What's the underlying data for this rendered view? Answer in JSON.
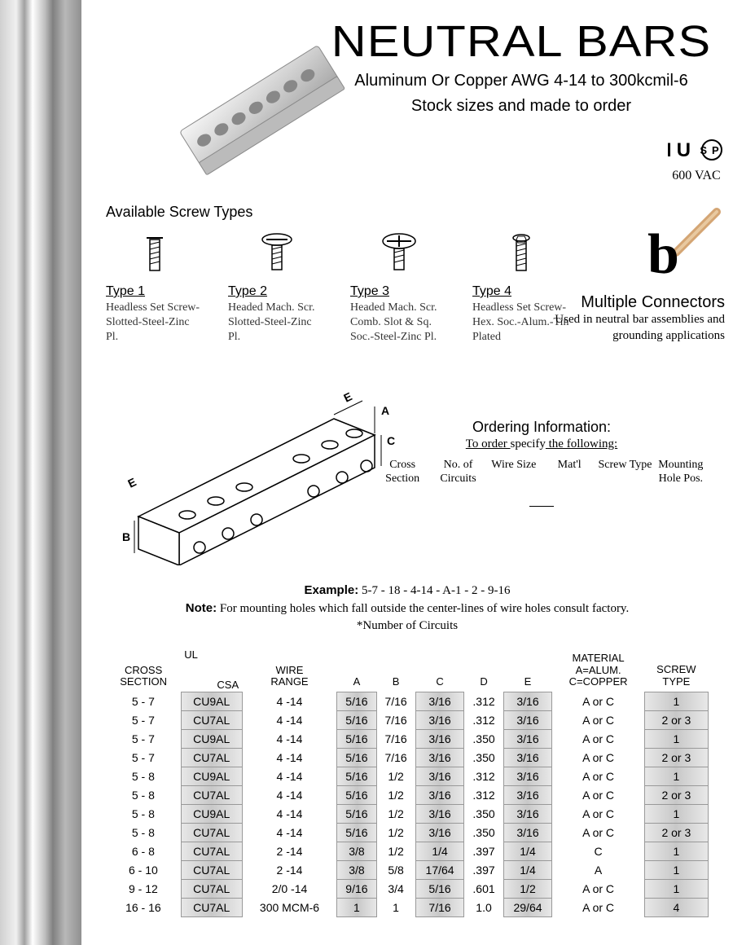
{
  "title": "NEUTRAL BARS",
  "subtitle1": "Aluminum Or Copper AWG 4-14 to 300kcmil-6",
  "subtitle2": "Stock sizes and made to order",
  "cert_voltage": "600 VAC",
  "screw_section_label": "Available Screw Types",
  "screws": [
    {
      "title": "Type 1",
      "desc": "Headless Set Screw-Slotted-Steel-Zinc Pl."
    },
    {
      "title": "Type 2",
      "desc": "Headed Mach. Scr. Slotted-Steel-Zinc Pl."
    },
    {
      "title": "Type 3",
      "desc": "Headed Mach. Scr. Comb. Slot & Sq. Soc.-Steel-Zinc Pl."
    },
    {
      "title": "Type 4",
      "desc": "Headless Set Screw-Hex. Soc.-Alum.-Tin Plated"
    }
  ],
  "mc_title": "Multiple Connectors",
  "mc_desc": "Used in neutral bar assemblies and grounding applications",
  "order_title": "Ordering Information:",
  "order_sub_pre": "To order ",
  "order_sub_mid": "specify",
  "order_sub_post": " the following:",
  "order_fields": [
    "Cross Section",
    "No. of Circuits",
    "Wire Size",
    "Mat'l",
    "Screw Type",
    "Mounting Hole Pos."
  ],
  "example_label": "Example:",
  "example_text": " 5-7 - 18 - 4-14 - A-1 - 2 - 9-16",
  "note_label": "Note:",
  "note_text": " For mounting holes which fall outside the center-lines of wire holes consult factory.",
  "note_foot": "*Number of Circuits",
  "table": {
    "headers": [
      "CROSS SECTION",
      "UL\nCSA",
      "WIRE RANGE",
      "A",
      "B",
      "C",
      "D",
      "E",
      "MATERIAL A=ALUM. C=COPPER",
      "SCREW TYPE"
    ],
    "shaded_cols": [
      false,
      true,
      false,
      true,
      false,
      true,
      false,
      true,
      false,
      true
    ],
    "rows": [
      [
        "5 - 7",
        "CU9AL",
        "4 -14",
        "5/16",
        "7/16",
        "3/16",
        ".312",
        "3/16",
        "A or C",
        "1"
      ],
      [
        "5 - 7",
        "CU7AL",
        "4 -14",
        "5/16",
        "7/16",
        "3/16",
        ".312",
        "3/16",
        "A or C",
        "2 or 3"
      ],
      [
        "5 - 7",
        "CU9AL",
        "4 -14",
        "5/16",
        "7/16",
        "3/16",
        ".350",
        "3/16",
        "A or C",
        "1"
      ],
      [
        "5 - 7",
        "CU7AL",
        "4 -14",
        "5/16",
        "7/16",
        "3/16",
        ".350",
        "3/16",
        "A or C",
        "2 or 3"
      ],
      [
        "5 - 8",
        "CU9AL",
        "4 -14",
        "5/16",
        "1/2",
        "3/16",
        ".312",
        "3/16",
        "A or C",
        "1"
      ],
      [
        "5 - 8",
        "CU7AL",
        "4 -14",
        "5/16",
        "1/2",
        "3/16",
        ".312",
        "3/16",
        "A or C",
        "2 or 3"
      ],
      [
        "5 - 8",
        "CU9AL",
        "4 -14",
        "5/16",
        "1/2",
        "3/16",
        ".350",
        "3/16",
        "A or C",
        "1"
      ],
      [
        "5 - 8",
        "CU7AL",
        "4 -14",
        "5/16",
        "1/2",
        "3/16",
        ".350",
        "3/16",
        "A or C",
        "2 or 3"
      ],
      [
        "6 - 8",
        "CU7AL",
        "2 -14",
        "3/8",
        "1/2",
        "1/4",
        ".397",
        "1/4",
        "C",
        "1"
      ],
      [
        "6 - 10",
        "CU7AL",
        "2 -14",
        "3/8",
        "5/8",
        "17/64",
        ".397",
        "1/4",
        "A",
        "1"
      ],
      [
        "9 - 12",
        "CU7AL",
        "2/0 -14",
        "9/16",
        "3/4",
        "5/16",
        ".601",
        "1/2",
        "A or C",
        "1"
      ],
      [
        "16 - 16",
        "CU7AL",
        "300 MCM-6",
        "1",
        "1",
        "7/16",
        "1.0",
        "29/64",
        "A or C",
        "4"
      ]
    ]
  },
  "colors": {
    "text": "#000000",
    "shade_a": "#e8e8e8",
    "shade_b": "#c8c8c8",
    "border": "#999999"
  }
}
